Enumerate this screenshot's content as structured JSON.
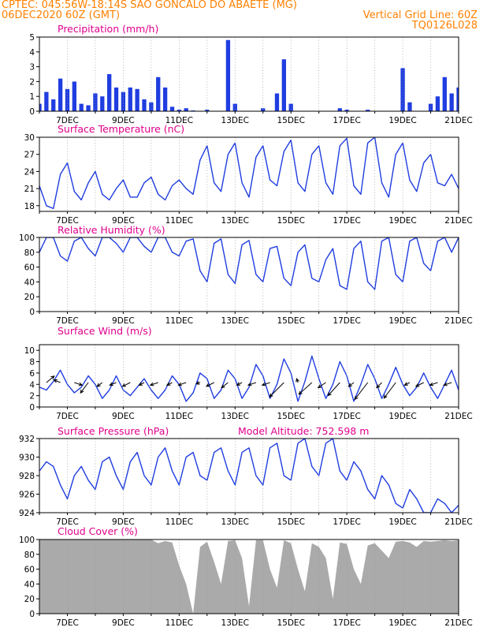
{
  "header": {
    "line1_left": "CPTEC:   045:56W-18:14S  SAO GONCALO DO ABAETE (MG)",
    "line2_left": "06DEC2020 60Z (GMT)",
    "line2_right": "Vertical Grid Line: 60Z",
    "line3_right": "TQ0126L028",
    "color": "#ff8000"
  },
  "colors": {
    "title": "#e0008c",
    "line": "#1f3de0",
    "cloud": "#aaaaaa",
    "arrow": "#000000",
    "grid": "#9a9a9a"
  },
  "x_labels": [
    "7DEC",
    "9DEC",
    "11DEC",
    "13DEC",
    "15DEC",
    "17DEC",
    "19DEC",
    "21DEC"
  ],
  "chart_data": [
    {
      "id": "precip",
      "type": "bar",
      "title": "Precipitation (mm/h)",
      "ylim": [
        0,
        5
      ],
      "yticks": [
        0,
        1,
        2,
        3,
        4,
        5
      ],
      "x_range_days": [
        6.0,
        21.0
      ],
      "x": [
        6.0,
        6.25,
        6.5,
        6.75,
        7.0,
        7.25,
        7.5,
        7.75,
        8.0,
        8.25,
        8.5,
        8.75,
        9.0,
        9.25,
        9.5,
        9.75,
        10.0,
        10.25,
        10.5,
        10.75,
        11.0,
        11.25,
        11.5,
        11.75,
        12.0,
        12.25,
        12.5,
        12.75,
        13.0,
        13.25,
        13.5,
        13.75,
        14.0,
        14.25,
        14.5,
        14.75,
        15.0,
        15.25,
        15.5,
        15.75,
        16.0,
        16.25,
        16.5,
        16.75,
        17.0,
        17.25,
        17.5,
        17.75,
        18.0,
        18.25,
        18.5,
        18.75,
        19.0,
        19.25,
        19.5,
        19.75,
        20.0,
        20.25,
        20.5,
        20.75,
        21.0
      ],
      "values": [
        0.5,
        1.3,
        0.8,
        2.2,
        1.5,
        2.0,
        0.5,
        0.4,
        1.2,
        1.0,
        2.5,
        1.6,
        1.3,
        1.6,
        1.5,
        0.8,
        0.6,
        2.3,
        1.6,
        0.3,
        0.1,
        0.2,
        0.05,
        0,
        0.1,
        0,
        0,
        4.8,
        0.5,
        0,
        0,
        0,
        0.2,
        0,
        1.2,
        3.5,
        0.5,
        0,
        0,
        0,
        0,
        0,
        0,
        0.2,
        0.1,
        0,
        0,
        0.1,
        0,
        0,
        0,
        0,
        2.9,
        0.6,
        0,
        0,
        0.5,
        1.0,
        2.3,
        1.2,
        1.6
      ]
    },
    {
      "id": "temp",
      "type": "line",
      "title": "Surface Temperature (nC)",
      "ylim": [
        17,
        30
      ],
      "yticks": [
        18,
        21,
        24,
        27,
        30
      ],
      "x": [
        6.0,
        6.25,
        6.5,
        6.75,
        7.0,
        7.25,
        7.5,
        7.75,
        8.0,
        8.25,
        8.5,
        8.75,
        9.0,
        9.25,
        9.5,
        9.75,
        10.0,
        10.25,
        10.5,
        10.75,
        11.0,
        11.25,
        11.5,
        11.75,
        12.0,
        12.25,
        12.5,
        12.75,
        13.0,
        13.25,
        13.5,
        13.75,
        14.0,
        14.25,
        14.5,
        14.75,
        15.0,
        15.25,
        15.5,
        15.75,
        16.0,
        16.25,
        16.5,
        16.75,
        17.0,
        17.25,
        17.5,
        17.75,
        18.0,
        18.25,
        18.5,
        18.75,
        19.0,
        19.25,
        19.5,
        19.75,
        20.0,
        20.25,
        20.5,
        20.75,
        21.0
      ],
      "values": [
        21.5,
        18.0,
        17.5,
        23.5,
        25.5,
        20.5,
        19.0,
        22.0,
        24.0,
        20.0,
        19.0,
        21.0,
        22.5,
        19.5,
        19.5,
        22.0,
        23.0,
        20.0,
        19.0,
        21.5,
        22.5,
        21.0,
        20.0,
        26.0,
        28.5,
        22.0,
        20.5,
        27.0,
        29.0,
        22.0,
        19.5,
        26.5,
        28.5,
        22.5,
        21.5,
        27.5,
        29.5,
        22.0,
        20.5,
        27.0,
        28.5,
        22.0,
        20.0,
        28.5,
        29.8,
        21.5,
        20.0,
        29.0,
        30.0,
        22.0,
        19.5,
        27.0,
        29.0,
        22.5,
        20.5,
        25.5,
        27.0,
        22.0,
        21.5,
        23.5,
        21.0
      ]
    },
    {
      "id": "rh",
      "type": "line",
      "title": "Relative Humidity (%)",
      "ylim": [
        0,
        100
      ],
      "yticks": [
        0,
        20,
        40,
        60,
        80,
        100
      ],
      "x": [
        6.0,
        6.25,
        6.5,
        6.75,
        7.0,
        7.25,
        7.5,
        7.75,
        8.0,
        8.25,
        8.5,
        8.75,
        9.0,
        9.25,
        9.5,
        9.75,
        10.0,
        10.25,
        10.5,
        10.75,
        11.0,
        11.25,
        11.5,
        11.75,
        12.0,
        12.25,
        12.5,
        12.75,
        13.0,
        13.25,
        13.5,
        13.75,
        14.0,
        14.25,
        14.5,
        14.75,
        15.0,
        15.25,
        15.5,
        15.75,
        16.0,
        16.25,
        16.5,
        16.75,
        17.0,
        17.25,
        17.5,
        17.75,
        18.0,
        18.25,
        18.5,
        18.75,
        19.0,
        19.25,
        19.5,
        19.75,
        20.0,
        20.25,
        20.5,
        20.75,
        21.0
      ],
      "values": [
        80,
        100,
        100,
        75,
        68,
        95,
        100,
        85,
        75,
        100,
        100,
        92,
        80,
        100,
        100,
        88,
        80,
        100,
        100,
        80,
        75,
        95,
        98,
        55,
        40,
        92,
        98,
        50,
        38,
        90,
        96,
        50,
        40,
        85,
        88,
        45,
        35,
        80,
        90,
        45,
        40,
        70,
        85,
        35,
        30,
        85,
        95,
        40,
        30,
        95,
        100,
        50,
        40,
        95,
        100,
        65,
        55,
        95,
        100,
        80,
        100
      ]
    },
    {
      "id": "wind",
      "type": "line",
      "title": "Surface Wind (m/s)",
      "ylim": [
        0,
        11
      ],
      "yticks": [
        0,
        2,
        4,
        6,
        8,
        10
      ],
      "x": [
        6.0,
        6.25,
        6.5,
        6.75,
        7.0,
        7.25,
        7.5,
        7.75,
        8.0,
        8.25,
        8.5,
        8.75,
        9.0,
        9.25,
        9.5,
        9.75,
        10.0,
        10.25,
        10.5,
        10.75,
        11.0,
        11.25,
        11.5,
        11.75,
        12.0,
        12.25,
        12.5,
        12.75,
        13.0,
        13.25,
        13.5,
        13.75,
        14.0,
        14.25,
        14.5,
        14.75,
        15.0,
        15.25,
        15.5,
        15.75,
        16.0,
        16.25,
        16.5,
        16.75,
        17.0,
        17.25,
        17.5,
        17.75,
        18.0,
        18.25,
        18.5,
        18.75,
        19.0,
        19.25,
        19.5,
        19.75,
        20.0,
        20.25,
        20.5,
        20.75,
        21.0
      ],
      "values": [
        3.5,
        3.0,
        4.5,
        6.5,
        4.0,
        2.5,
        3.5,
        5.5,
        4.0,
        1.5,
        3.0,
        5.5,
        3.0,
        2.0,
        3.5,
        5.0,
        3.0,
        1.5,
        3.0,
        5.5,
        4.0,
        1.0,
        2.5,
        6.0,
        5.0,
        1.5,
        3.0,
        6.5,
        5.0,
        1.5,
        3.5,
        7.5,
        5.5,
        1.5,
        4.0,
        8.5,
        6.0,
        1.0,
        4.5,
        9.0,
        5.0,
        1.5,
        4.0,
        8.0,
        5.5,
        1.0,
        4.0,
        7.5,
        5.0,
        1.5,
        4.0,
        7.0,
        4.0,
        2.0,
        3.5,
        6.0,
        3.5,
        1.5,
        4.0,
        6.5,
        3.0
      ],
      "arrows": {
        "x": [
          6.25,
          6.75,
          7.25,
          7.75,
          8.25,
          8.75,
          9.25,
          9.75,
          10.25,
          10.75,
          11.25,
          11.75,
          12.25,
          12.75,
          13.25,
          13.75,
          14.25,
          14.75,
          15.25,
          15.75,
          16.25,
          16.75,
          17.25,
          17.75,
          18.25,
          18.75,
          19.25,
          19.75,
          20.25,
          20.75
        ],
        "u": [
          3.0,
          -2.5,
          3.0,
          -3.0,
          -2.0,
          -2.5,
          -3.0,
          -2.0,
          -3.0,
          -2.0,
          -3.0,
          -1.5,
          -3.0,
          -2.5,
          -2.0,
          -3.0,
          -3.0,
          -5.5,
          -0.5,
          -5.0,
          -3.0,
          -4.5,
          -2.0,
          -5.0,
          -2.0,
          -4.5,
          -2.0,
          -3.0,
          -3.0,
          -3.0
        ],
        "v": [
          2.5,
          1.0,
          -1.0,
          -4.0,
          -1.5,
          -1.0,
          -1.5,
          -1.0,
          -1.0,
          -1.0,
          -1.0,
          -0.5,
          -1.5,
          -2.0,
          -1.0,
          -1.0,
          -1.0,
          -5.5,
          1.5,
          -4.5,
          -2.0,
          -5.0,
          -1.5,
          -6.5,
          -2.0,
          -6.0,
          -1.0,
          -1.5,
          -1.0,
          -1.0
        ]
      }
    },
    {
      "id": "pressure",
      "type": "line",
      "title": "Surface Pressure (hPa)",
      "annotation": "Model Altitude: 752.598 m",
      "ylim": [
        924,
        932
      ],
      "yticks": [
        924,
        926,
        928,
        930,
        932
      ],
      "x": [
        6.0,
        6.25,
        6.5,
        6.75,
        7.0,
        7.25,
        7.5,
        7.75,
        8.0,
        8.25,
        8.5,
        8.75,
        9.0,
        9.25,
        9.5,
        9.75,
        10.0,
        10.25,
        10.5,
        10.75,
        11.0,
        11.25,
        11.5,
        11.75,
        12.0,
        12.25,
        12.5,
        12.75,
        13.0,
        13.25,
        13.5,
        13.75,
        14.0,
        14.25,
        14.5,
        14.75,
        15.0,
        15.25,
        15.5,
        15.75,
        16.0,
        16.25,
        16.5,
        16.75,
        17.0,
        17.25,
        17.5,
        17.75,
        18.0,
        18.25,
        18.5,
        18.75,
        19.0,
        19.25,
        19.5,
        19.75,
        20.0,
        20.25,
        20.5,
        20.75,
        21.0
      ],
      "values": [
        928.5,
        929.5,
        929.0,
        927.0,
        925.5,
        928.0,
        929.0,
        927.5,
        926.5,
        929.5,
        930.0,
        928.0,
        926.5,
        929.5,
        930.5,
        928.0,
        927.0,
        930.0,
        931.0,
        928.5,
        927.0,
        930.0,
        930.5,
        928.0,
        927.5,
        930.5,
        931.0,
        928.5,
        927.0,
        930.5,
        931.0,
        928.0,
        927.0,
        931.0,
        931.5,
        928.0,
        927.5,
        931.5,
        932.0,
        929.0,
        928.0,
        931.5,
        932.0,
        928.5,
        927.5,
        929.5,
        928.5,
        926.5,
        925.5,
        928.0,
        927.0,
        925.0,
        924.5,
        926.5,
        925.5,
        924.0,
        924.0,
        925.5,
        925.0,
        924.0,
        924.8
      ]
    },
    {
      "id": "cloud",
      "type": "area",
      "title": "Cloud Cover (%)",
      "ylim": [
        0,
        100
      ],
      "yticks": [
        0,
        20,
        40,
        60,
        80,
        100
      ],
      "x": [
        6.0,
        6.25,
        6.5,
        6.75,
        7.0,
        7.25,
        7.5,
        7.75,
        8.0,
        8.25,
        8.5,
        8.75,
        9.0,
        9.25,
        9.5,
        9.75,
        10.0,
        10.25,
        10.5,
        10.75,
        11.0,
        11.25,
        11.5,
        11.75,
        12.0,
        12.25,
        12.5,
        12.75,
        13.0,
        13.25,
        13.5,
        13.75,
        14.0,
        14.25,
        14.5,
        14.75,
        15.0,
        15.25,
        15.5,
        15.75,
        16.0,
        16.25,
        16.5,
        16.75,
        17.0,
        17.25,
        17.5,
        17.75,
        18.0,
        18.25,
        18.5,
        18.75,
        19.0,
        19.25,
        19.5,
        19.75,
        20.0,
        20.25,
        20.5,
        20.75,
        21.0
      ],
      "values": [
        100,
        100,
        100,
        100,
        100,
        100,
        100,
        100,
        100,
        100,
        100,
        100,
        100,
        100,
        100,
        100,
        100,
        95,
        98,
        96,
        65,
        40,
        0,
        90,
        97,
        70,
        40,
        98,
        99,
        75,
        10,
        99,
        99,
        60,
        35,
        99,
        95,
        60,
        30,
        95,
        90,
        75,
        20,
        96,
        94,
        60,
        40,
        92,
        95,
        85,
        75,
        97,
        98,
        96,
        90,
        98,
        97,
        98,
        99,
        98,
        99
      ]
    }
  ]
}
